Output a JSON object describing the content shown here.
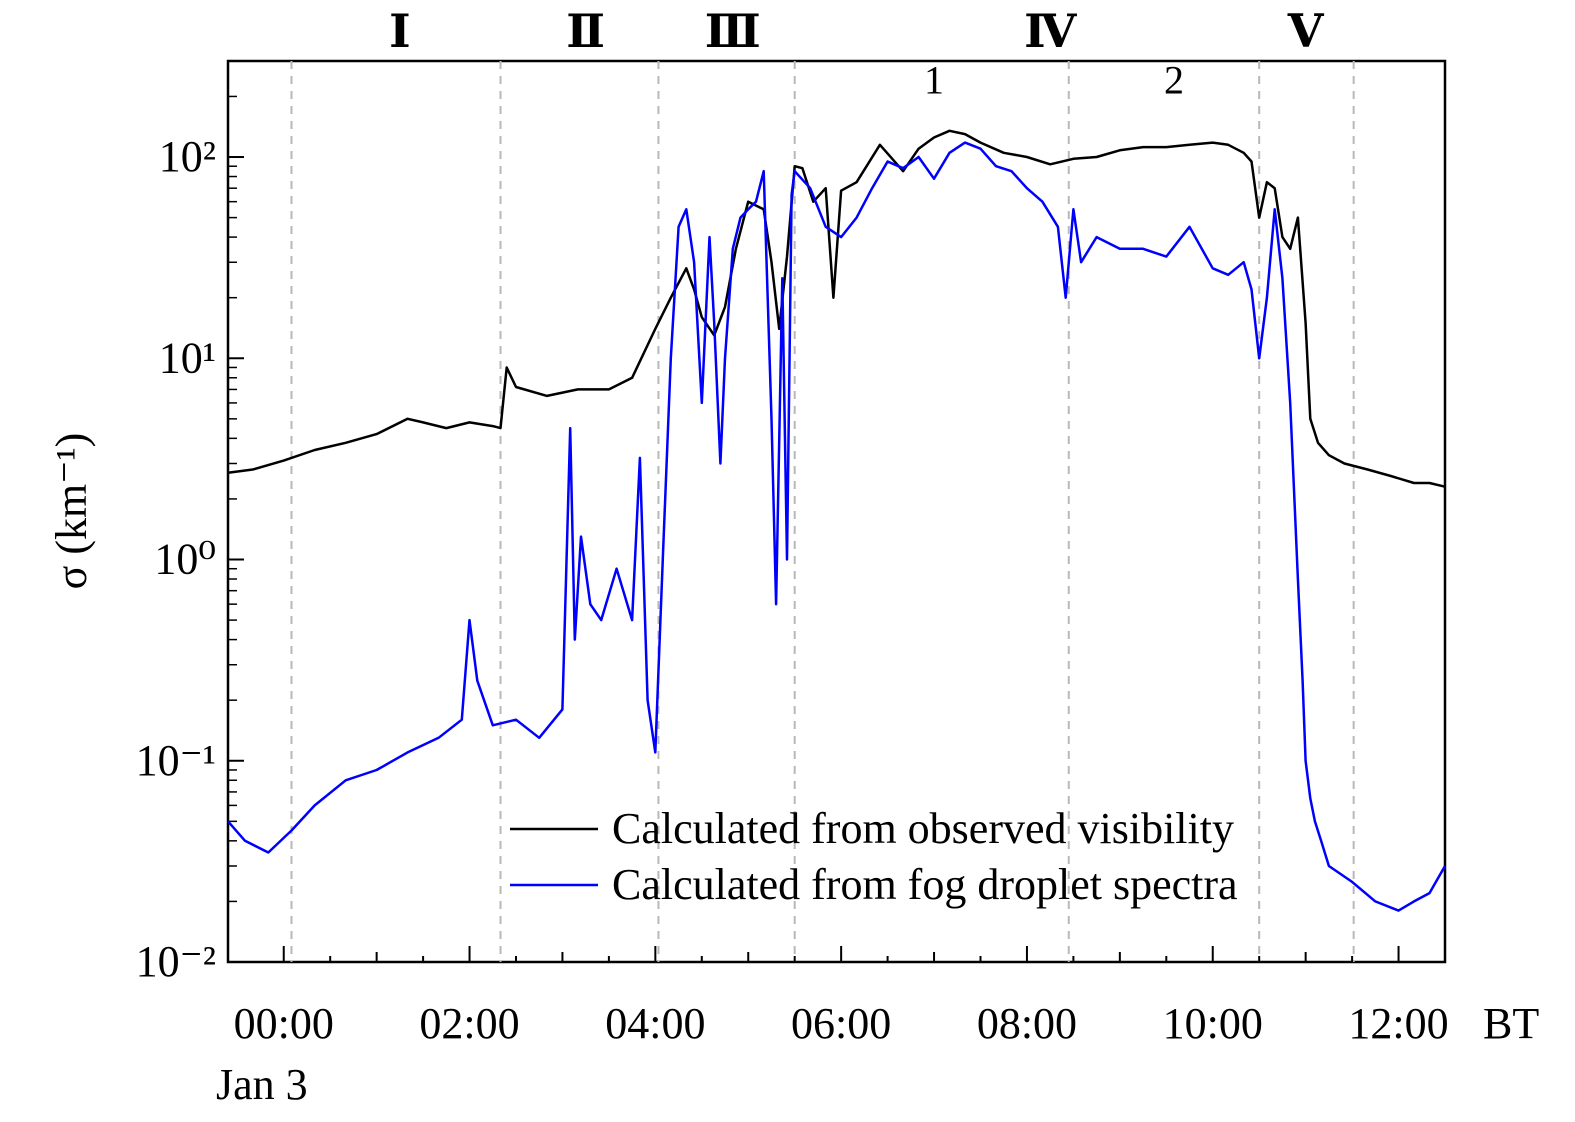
{
  "chart_data": {
    "type": "line",
    "xlabel": "",
    "x_unit": "BT",
    "date_label": "Jan 3",
    "ylabel": "σ (km⁻¹)",
    "yscale": "log",
    "ylim": [
      0.01,
      300
    ],
    "xlim": [
      "Jan 3 23:24",
      "Jan 3 12:30"
    ],
    "x_ticks": [
      "00:00",
      "02:00",
      "04:00",
      "06:00",
      "08:00",
      "10:00",
      "12:00"
    ],
    "y_ticks": [
      "10⁻²",
      "10⁻¹",
      "10⁰",
      "10¹",
      "10²"
    ],
    "y_tick_values": [
      0.01,
      0.1,
      1,
      10,
      100
    ],
    "grid": false,
    "legend_position": "bottom-center",
    "stage_labels": [
      {
        "label": "Ⅰ",
        "time": "01:15"
      },
      {
        "label": "Ⅱ",
        "time": "03:15"
      },
      {
        "label": "Ⅲ",
        "time": "04:50"
      },
      {
        "label": "Ⅳ",
        "time": "08:15"
      },
      {
        "label": "Ⅴ",
        "time": "11:00"
      }
    ],
    "stage_boundaries": [
      "00:05",
      "02:20",
      "04:02",
      "05:30",
      "08:27",
      "10:30",
      "11:31"
    ],
    "sub_labels": [
      {
        "label": "1",
        "time": "07:00",
        "value": 165
      },
      {
        "label": "2",
        "time": "09:35",
        "value": 165
      }
    ],
    "series": [
      {
        "name": "Calculated from observed visibility",
        "color": "#000000",
        "x": [
          "23:24",
          "23:40",
          "00:00",
          "00:20",
          "00:40",
          "01:00",
          "01:20",
          "01:30",
          "01:45",
          "02:00",
          "02:15",
          "02:20",
          "02:24",
          "02:30",
          "02:50",
          "03:10",
          "03:30",
          "03:45",
          "04:00",
          "04:10",
          "04:20",
          "04:25",
          "04:30",
          "04:38",
          "04:45",
          "04:52",
          "05:00",
          "05:10",
          "05:15",
          "05:20",
          "05:25",
          "05:30",
          "05:35",
          "05:42",
          "05:50",
          "05:55",
          "06:00",
          "06:10",
          "06:25",
          "06:40",
          "06:50",
          "07:00",
          "07:10",
          "07:20",
          "07:30",
          "07:45",
          "08:00",
          "08:15",
          "08:30",
          "08:45",
          "09:00",
          "09:15",
          "09:30",
          "09:45",
          "10:00",
          "10:10",
          "10:20",
          "10:25",
          "10:30",
          "10:35",
          "10:40",
          "10:45",
          "10:50",
          "10:55",
          "11:00",
          "11:03",
          "11:08",
          "11:15",
          "11:25",
          "11:40",
          "11:55",
          "12:10",
          "12:20",
          "12:30"
        ],
        "y": [
          2.7,
          2.8,
          3.1,
          3.5,
          3.8,
          4.2,
          5.0,
          4.8,
          4.5,
          4.8,
          4.6,
          4.5,
          9.0,
          7.2,
          6.5,
          7.0,
          7.0,
          8.0,
          14,
          20,
          28,
          22,
          16,
          13,
          18,
          35,
          60,
          55,
          30,
          14,
          32,
          90,
          88,
          60,
          70,
          20,
          68,
          75,
          115,
          85,
          110,
          125,
          135,
          130,
          118,
          105,
          100,
          92,
          98,
          100,
          108,
          112,
          112,
          115,
          118,
          115,
          105,
          95,
          50,
          75,
          70,
          40,
          35,
          50,
          15,
          5.0,
          3.8,
          3.3,
          3.0,
          2.8,
          2.6,
          2.4,
          2.4,
          2.3
        ]
      },
      {
        "name": "Calculated from fog droplet spectra",
        "color": "#0000ff",
        "x": [
          "23:24",
          "23:35",
          "23:50",
          "00:05",
          "00:20",
          "00:40",
          "01:00",
          "01:20",
          "01:40",
          "01:55",
          "02:00",
          "02:05",
          "02:15",
          "02:30",
          "02:45",
          "03:00",
          "03:05",
          "03:08",
          "03:12",
          "03:18",
          "03:25",
          "03:35",
          "03:45",
          "03:50",
          "03:55",
          "04:00",
          "04:05",
          "04:10",
          "04:15",
          "04:20",
          "04:25",
          "04:30",
          "04:35",
          "04:38",
          "04:42",
          "04:45",
          "04:50",
          "04:55",
          "05:00",
          "05:05",
          "05:10",
          "05:15",
          "05:18",
          "05:22",
          "05:25",
          "05:28",
          "05:30",
          "05:40",
          "05:50",
          "06:00",
          "06:10",
          "06:20",
          "06:30",
          "06:40",
          "06:50",
          "07:00",
          "07:10",
          "07:20",
          "07:30",
          "07:40",
          "07:50",
          "08:00",
          "08:10",
          "08:20",
          "08:25",
          "08:30",
          "08:35",
          "08:45",
          "09:00",
          "09:15",
          "09:30",
          "09:45",
          "10:00",
          "10:10",
          "10:20",
          "10:25",
          "10:30",
          "10:35",
          "10:40",
          "10:45",
          "10:50",
          "10:55",
          "10:58",
          "11:00",
          "11:03",
          "11:06",
          "11:10",
          "11:15",
          "11:30",
          "11:45",
          "12:00",
          "12:10",
          "12:20",
          "12:30"
        ],
        "y": [
          0.05,
          0.04,
          0.035,
          0.045,
          0.06,
          0.08,
          0.09,
          0.11,
          0.13,
          0.16,
          0.5,
          0.25,
          0.15,
          0.16,
          0.13,
          0.18,
          4.5,
          0.4,
          1.3,
          0.6,
          0.5,
          0.9,
          0.5,
          3.2,
          0.2,
          0.11,
          1.1,
          10,
          45,
          55,
          30,
          6,
          40,
          15,
          3,
          10,
          35,
          50,
          55,
          60,
          85,
          5,
          0.6,
          25,
          1,
          65,
          85,
          70,
          45,
          40,
          50,
          70,
          95,
          88,
          100,
          78,
          105,
          118,
          110,
          90,
          85,
          70,
          60,
          45,
          20,
          55,
          30,
          40,
          35,
          35,
          32,
          45,
          28,
          26,
          30,
          22,
          10,
          20,
          55,
          25,
          6,
          0.8,
          0.25,
          0.1,
          0.065,
          0.05,
          0.04,
          0.03,
          0.025,
          0.02,
          0.018,
          0.02,
          0.022,
          0.03
        ]
      }
    ]
  }
}
